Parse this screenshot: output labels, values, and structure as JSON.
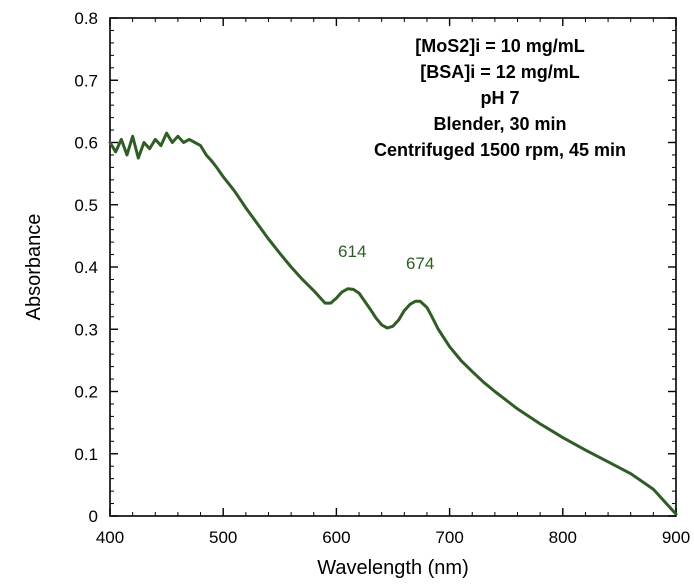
{
  "chart_data": {
    "type": "line",
    "title": "",
    "xlabel": "Wavelength (nm)",
    "ylabel": "Absorbance",
    "xlim": [
      400,
      900
    ],
    "ylim": [
      0,
      0.8
    ],
    "xticks": [
      400,
      500,
      600,
      700,
      800,
      900
    ],
    "yticks": [
      0,
      0.1,
      0.2,
      0.3,
      0.4,
      0.5,
      0.6,
      0.7,
      0.8
    ],
    "xtick_labels": [
      "400",
      "500",
      "600",
      "700",
      "800",
      "900"
    ],
    "ytick_labels": [
      "0",
      "0.1",
      "0.2",
      "0.3",
      "0.4",
      "0.5",
      "0.6",
      "0.7",
      "0.8"
    ],
    "grid": false,
    "line_color": "#2e5e24",
    "series": [
      {
        "x": [
          400,
          405,
          410,
          415,
          420,
          425,
          430,
          435,
          440,
          445,
          450,
          455,
          460,
          465,
          470,
          475,
          480,
          485,
          490,
          495,
          500,
          510,
          520,
          530,
          540,
          550,
          560,
          570,
          580,
          590,
          595,
          600,
          605,
          610,
          615,
          620,
          625,
          630,
          635,
          640,
          645,
          650,
          655,
          660,
          665,
          670,
          674,
          680,
          685,
          690,
          700,
          710,
          720,
          730,
          740,
          750,
          760,
          770,
          780,
          790,
          800,
          820,
          840,
          860,
          880,
          900
        ],
        "y": [
          0.6,
          0.585,
          0.605,
          0.58,
          0.61,
          0.575,
          0.6,
          0.59,
          0.605,
          0.595,
          0.615,
          0.6,
          0.61,
          0.6,
          0.605,
          0.6,
          0.595,
          0.58,
          0.57,
          0.558,
          0.545,
          0.522,
          0.495,
          0.47,
          0.445,
          0.422,
          0.4,
          0.38,
          0.362,
          0.342,
          0.342,
          0.35,
          0.36,
          0.365,
          0.364,
          0.358,
          0.345,
          0.332,
          0.318,
          0.307,
          0.302,
          0.305,
          0.315,
          0.33,
          0.34,
          0.345,
          0.345,
          0.335,
          0.318,
          0.3,
          0.272,
          0.25,
          0.232,
          0.215,
          0.2,
          0.186,
          0.172,
          0.16,
          0.148,
          0.137,
          0.126,
          0.106,
          0.087,
          0.068,
          0.043,
          0.003
        ]
      }
    ],
    "peak_labels": [
      {
        "x": 614,
        "y": 0.365,
        "label": "614"
      },
      {
        "x": 674,
        "y": 0.345,
        "label": "674"
      }
    ],
    "annotation_lines": [
      "[MoS2]i = 10 mg/mL",
      "[BSA]i = 12 mg/mL",
      "pH 7",
      "Blender, 30 min",
      "Centrifuged 1500 rpm, 45 min"
    ]
  }
}
